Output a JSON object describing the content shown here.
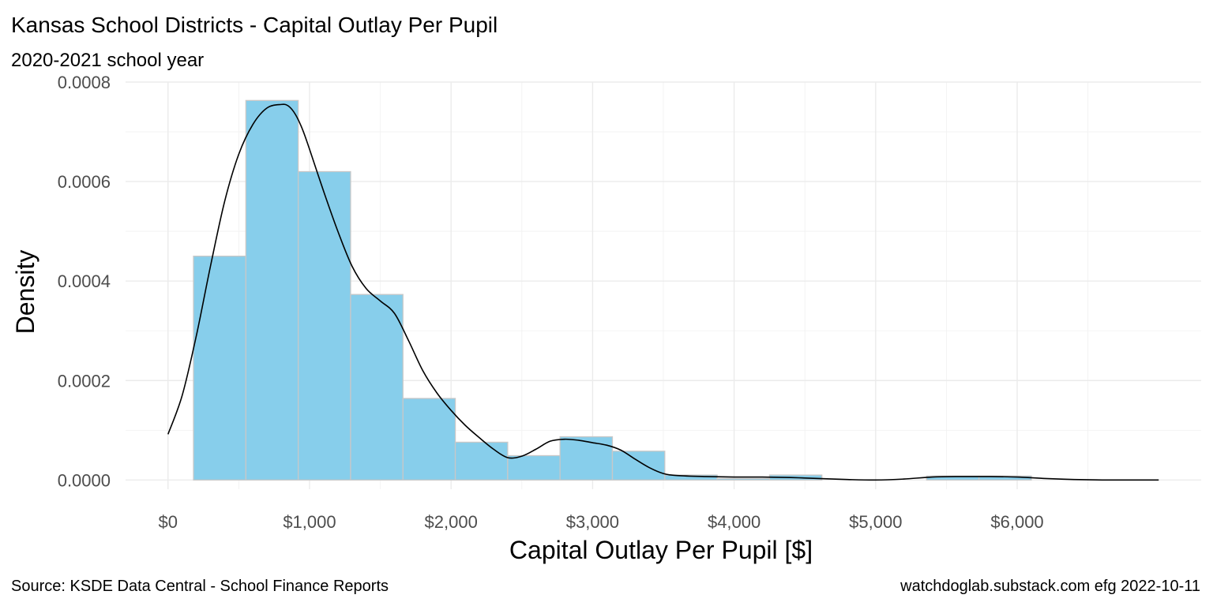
{
  "chart_data": {
    "type": "bar",
    "title": "Kansas School Districts - Capital Outlay Per Pupil",
    "subtitle": "2020-2021 school year",
    "xlabel": "Capital Outlay Per Pupil [$]",
    "ylabel": "Density",
    "caption_left": "Source:  KSDE Data Central - School Finance Reports",
    "caption_right": "watchdoglab.substack.com  efg 2022-10-11",
    "xlim": [
      -300,
      7300
    ],
    "ylim": [
      -1.85e-05,
      0.0008
    ],
    "x_ticks": [
      {
        "value": 0,
        "label": "$0"
      },
      {
        "value": 1000,
        "label": "$1,000"
      },
      {
        "value": 2000,
        "label": "$2,000"
      },
      {
        "value": 3000,
        "label": "$3,000"
      },
      {
        "value": 4000,
        "label": "$4,000"
      },
      {
        "value": 5000,
        "label": "$5,000"
      },
      {
        "value": 6000,
        "label": "$6,000"
      }
    ],
    "y_ticks": [
      {
        "value": 0,
        "label": "0.0000"
      },
      {
        "value": 0.0002,
        "label": "0.0002"
      },
      {
        "value": 0.0004,
        "label": "0.0004"
      },
      {
        "value": 0.0006,
        "label": "0.0006"
      },
      {
        "value": 0.0008,
        "label": "0.0008"
      }
    ],
    "grid": true,
    "histogram": {
      "bins": [
        {
          "x0": 180,
          "x1": 550,
          "density": 0.00045
        },
        {
          "x0": 550,
          "x1": 920,
          "density": 0.000763
        },
        {
          "x0": 920,
          "x1": 1290,
          "density": 0.00062
        },
        {
          "x0": 1290,
          "x1": 1660,
          "density": 0.000373
        },
        {
          "x0": 1660,
          "x1": 2030,
          "density": 0.000164
        },
        {
          "x0": 2030,
          "x1": 2400,
          "density": 7.6e-05
        },
        {
          "x0": 2400,
          "x1": 2770,
          "density": 4.9e-05
        },
        {
          "x0": 2770,
          "x1": 3140,
          "density": 8.7e-05
        },
        {
          "x0": 3140,
          "x1": 3510,
          "density": 5.8e-05
        },
        {
          "x0": 3510,
          "x1": 3880,
          "density": 1e-05
        },
        {
          "x0": 3880,
          "x1": 4250,
          "density": 3e-06
        },
        {
          "x0": 4250,
          "x1": 4620,
          "density": 1e-05
        },
        {
          "x0": 4620,
          "x1": 4990,
          "density": 0.0
        },
        {
          "x0": 4990,
          "x1": 5360,
          "density": 0.0
        },
        {
          "x0": 5360,
          "x1": 5730,
          "density": 8e-06
        },
        {
          "x0": 5730,
          "x1": 6100,
          "density": 8e-06
        }
      ],
      "fill": "#87ceeb",
      "border": "#c8c8c8"
    },
    "density_curve": {
      "x": [
        0,
        100,
        200,
        300,
        400,
        500,
        600,
        700,
        800,
        850,
        900,
        950,
        1000,
        1100,
        1200,
        1300,
        1400,
        1500,
        1600,
        1700,
        1800,
        1900,
        2000,
        2100,
        2200,
        2300,
        2400,
        2500,
        2600,
        2700,
        2800,
        2900,
        3000,
        3100,
        3200,
        3300,
        3400,
        3500,
        3600,
        3800,
        4000,
        4200,
        4400,
        4600,
        4800,
        5000,
        5200,
        5400,
        5600,
        5800,
        6000,
        6200,
        6400,
        6600,
        6800,
        7000
      ],
      "y": [
        9.2e-05,
        0.00017,
        0.00029,
        0.00043,
        0.00056,
        0.000655,
        0.000715,
        0.000748,
        0.000755,
        0.000752,
        0.000735,
        0.000705,
        0.000665,
        0.00058,
        0.0005,
        0.00043,
        0.000385,
        0.00036,
        0.000335,
        0.00028,
        0.00022,
        0.000175,
        0.00014,
        0.00011,
        8.5e-05,
        6.2e-05,
        4.5e-05,
        4.8e-05,
        6.2e-05,
        7.8e-05,
        8.2e-05,
        8e-05,
        7.5e-05,
        7e-05,
        6e-05,
        4.2e-05,
        2.5e-05,
        1.3e-05,
        9e-06,
        7e-06,
        6e-06,
        6e-06,
        5e-06,
        3e-06,
        1e-06,
        0.0,
        2e-06,
        6e-06,
        7e-06,
        7e-06,
        6e-06,
        3e-06,
        1e-06,
        0.0,
        0.0,
        0.0
      ]
    }
  }
}
